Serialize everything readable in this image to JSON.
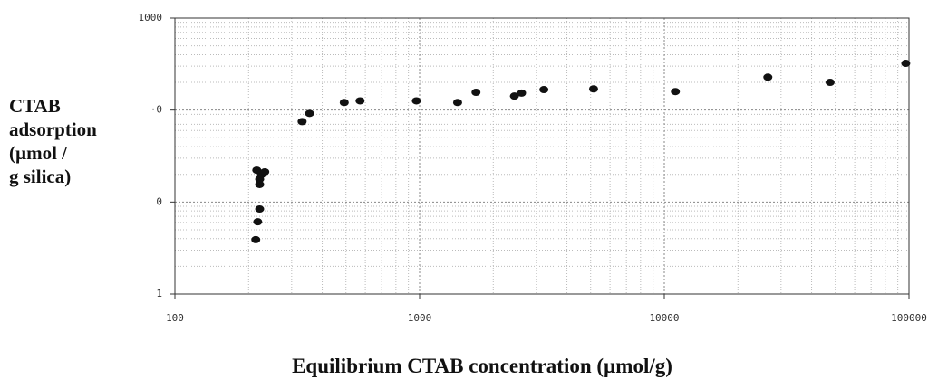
{
  "chart_data": {
    "type": "scatter",
    "x_label": "Equilibrium CTAB concentration (µmol/g)",
    "y_label": [
      "CTAB",
      "adsorption",
      "(µmol /",
      "g silica)"
    ],
    "xlog": true,
    "ylog": true,
    "grid": true,
    "color": "#111111",
    "xlim": [
      100,
      100000
    ],
    "xticks": [
      100,
      1000,
      10000,
      100000
    ],
    "ylim": [
      1,
      1000
    ],
    "yticks": [
      1,
      {
        "value": 10,
        "label": "0"
      },
      {
        "value": 100,
        "label": "·0"
      },
      1000
    ],
    "x": [
      214,
      218,
      222,
      222,
      222,
      226,
      216,
      233,
      331,
      355,
      492,
      571,
      970,
      1430,
      1700,
      2440,
      2610,
      3220,
      5140,
      11100,
      26500,
      47600,
      97000
    ],
    "y": [
      3.9,
      6.1,
      8.4,
      15.5,
      17.7,
      19.9,
      22.2,
      21.3,
      75,
      92,
      121,
      126,
      126,
      121,
      156,
      142,
      153,
      167,
      170,
      159,
      228,
      200,
      322
    ]
  }
}
